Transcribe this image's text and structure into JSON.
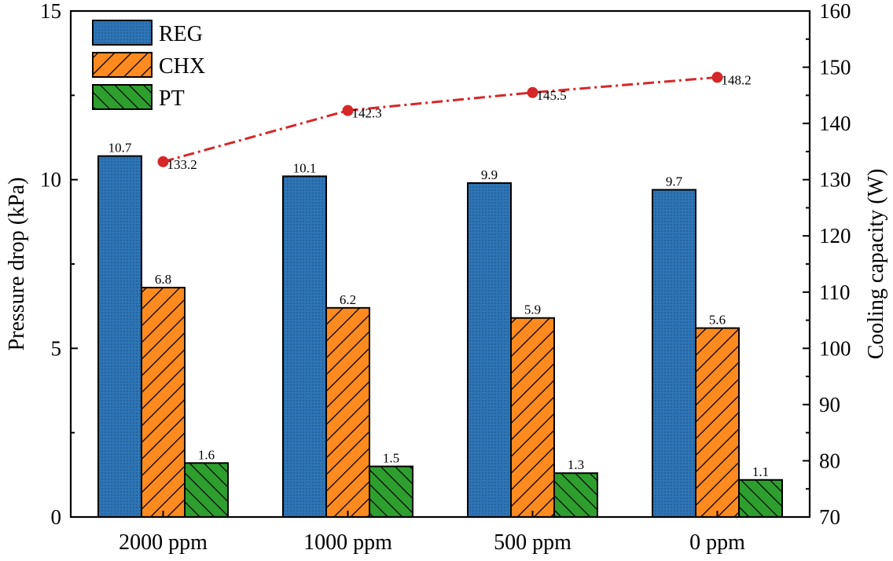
{
  "chart_data": {
    "type": "bar",
    "categories": [
      "2000 ppm",
      "1000 ppm",
      "500 ppm",
      "0 ppm"
    ],
    "series": [
      {
        "name": "REG",
        "values": [
          10.7,
          10.1,
          9.9,
          9.7
        ],
        "color": "#2e75b6",
        "pattern": "dots"
      },
      {
        "name": "CHX",
        "values": [
          6.8,
          6.2,
          5.9,
          5.6
        ],
        "color": "#ff8a1f",
        "pattern": "hatch-forward"
      },
      {
        "name": "PT",
        "values": [
          1.6,
          1.5,
          1.3,
          1.1
        ],
        "color": "#2e9e2e",
        "pattern": "hatch-backward"
      }
    ],
    "bar_labels": [
      [
        "10.7",
        "10.1",
        "9.9",
        "9.7"
      ],
      [
        "6.8",
        "6.2",
        "5.9",
        "5.6"
      ],
      [
        "1.6",
        "1.5",
        "1.3",
        "1.1"
      ]
    ],
    "line_series": {
      "values": [
        133.2,
        142.3,
        145.5,
        148.2
      ],
      "labels": [
        "133.2",
        "142.3",
        "145.5",
        "148.2"
      ],
      "color": "#d62728",
      "style": "dash-dot",
      "axis": "right"
    },
    "ylabel": "Pressure drop (kPa)",
    "ylabel_right": "Cooling capacity (W)",
    "xlabel": "",
    "ylim": [
      0,
      15
    ],
    "y2lim": [
      70,
      160
    ],
    "y_ticks": [
      "0",
      "5",
      "10",
      "15"
    ],
    "y2_ticks": [
      "70",
      "80",
      "90",
      "100",
      "110",
      "120",
      "130",
      "140",
      "150",
      "160"
    ],
    "legend_position": "top-left",
    "grid": false
  }
}
